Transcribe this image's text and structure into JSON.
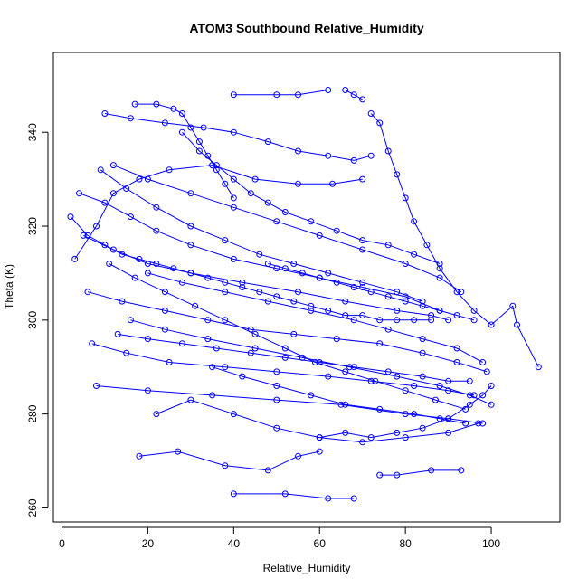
{
  "chart_data": {
    "type": "line",
    "title": "ATOM3 Southbound Relative_Humidity",
    "xlabel": "Relative_Humidity",
    "ylabel": "Theta (K)",
    "xlim": [
      -2,
      116
    ],
    "ylim": [
      257,
      357
    ],
    "xticks": [
      0,
      20,
      40,
      60,
      80,
      100
    ],
    "yticks": [
      260,
      280,
      300,
      320,
      340
    ],
    "grid": false,
    "legend": "none",
    "marker": "open-circle",
    "color": "#0000ff",
    "series": [
      {
        "values": [
          [
            3,
            313
          ],
          [
            8,
            320
          ],
          [
            12,
            327
          ],
          [
            18,
            330
          ],
          [
            25,
            332
          ],
          [
            35,
            333
          ],
          [
            45,
            330
          ],
          [
            55,
            329
          ],
          [
            63,
            329
          ],
          [
            70,
            330
          ]
        ]
      },
      {
        "values": [
          [
            4,
            327
          ],
          [
            10,
            325
          ],
          [
            16,
            322
          ],
          [
            22,
            319
          ],
          [
            30,
            316
          ],
          [
            40,
            313
          ],
          [
            50,
            311
          ],
          [
            60,
            309
          ],
          [
            70,
            307
          ],
          [
            80,
            305
          ],
          [
            88,
            302
          ]
        ]
      },
      {
        "values": [
          [
            5,
            318
          ],
          [
            12,
            315
          ],
          [
            20,
            312
          ],
          [
            30,
            310
          ],
          [
            42,
            308
          ],
          [
            55,
            306
          ],
          [
            66,
            304
          ],
          [
            78,
            302
          ],
          [
            86,
            301
          ],
          [
            90,
            300
          ]
        ]
      },
      {
        "values": [
          [
            7,
            295
          ],
          [
            15,
            293
          ],
          [
            25,
            291
          ],
          [
            38,
            290
          ],
          [
            50,
            289
          ],
          [
            62,
            288
          ],
          [
            72,
            287
          ],
          [
            82,
            286
          ],
          [
            90,
            285
          ],
          [
            96,
            284
          ]
        ]
      },
      {
        "values": [
          [
            8,
            286
          ],
          [
            20,
            285
          ],
          [
            35,
            284
          ],
          [
            50,
            283
          ],
          [
            65,
            282
          ],
          [
            80,
            280
          ],
          [
            90,
            279
          ],
          [
            98,
            278
          ]
        ]
      },
      {
        "values": [
          [
            10,
            344
          ],
          [
            16,
            343
          ],
          [
            24,
            342
          ],
          [
            33,
            341
          ],
          [
            40,
            340
          ],
          [
            48,
            338
          ],
          [
            55,
            336
          ],
          [
            62,
            335
          ],
          [
            68,
            334
          ],
          [
            72,
            335
          ]
        ]
      },
      {
        "values": [
          [
            12,
            333
          ],
          [
            20,
            330
          ],
          [
            30,
            327
          ],
          [
            40,
            324
          ],
          [
            50,
            321
          ],
          [
            60,
            318
          ],
          [
            70,
            315
          ],
          [
            80,
            312
          ],
          [
            88,
            309
          ],
          [
            93,
            306
          ]
        ]
      },
      {
        "values": [
          [
            18,
            271
          ],
          [
            27,
            272
          ],
          [
            38,
            269
          ],
          [
            48,
            268
          ],
          [
            55,
            271
          ],
          [
            60,
            272
          ]
        ]
      },
      {
        "values": [
          [
            40,
            263
          ],
          [
            52,
            263
          ],
          [
            62,
            262
          ],
          [
            68,
            262
          ]
        ]
      },
      {
        "values": [
          [
            40,
            348
          ],
          [
            50,
            348
          ],
          [
            55,
            348
          ],
          [
            62,
            349
          ],
          [
            66,
            349
          ],
          [
            68,
            348
          ],
          [
            70,
            347
          ]
        ]
      },
      {
        "values": [
          [
            72,
            344
          ],
          [
            74,
            342
          ],
          [
            76,
            336
          ],
          [
            78,
            331
          ],
          [
            80,
            326
          ],
          [
            82,
            321
          ],
          [
            85,
            316
          ],
          [
            88,
            311
          ],
          [
            92,
            306
          ],
          [
            96,
            302
          ],
          [
            100,
            299
          ],
          [
            105,
            303
          ],
          [
            106,
            299
          ],
          [
            111,
            290
          ]
        ]
      },
      {
        "values": [
          [
            74,
            267
          ],
          [
            78,
            267
          ],
          [
            86,
            268
          ],
          [
            93,
            268
          ]
        ]
      },
      {
        "values": [
          [
            16,
            300
          ],
          [
            24,
            298
          ],
          [
            34,
            296
          ],
          [
            45,
            294
          ],
          [
            56,
            292
          ],
          [
            67,
            290
          ],
          [
            78,
            288
          ],
          [
            88,
            286
          ],
          [
            95,
            284
          ],
          [
            100,
            282
          ]
        ]
      },
      {
        "values": [
          [
            20,
            310
          ],
          [
            28,
            308
          ],
          [
            38,
            306
          ],
          [
            48,
            304
          ],
          [
            58,
            302
          ],
          [
            68,
            300
          ],
          [
            76,
            298
          ],
          [
            84,
            296
          ],
          [
            92,
            294
          ],
          [
            98,
            291
          ]
        ]
      },
      {
        "values": [
          [
            22,
            280
          ],
          [
            30,
            283
          ],
          [
            40,
            280
          ],
          [
            50,
            277
          ],
          [
            60,
            275
          ],
          [
            70,
            274
          ],
          [
            80,
            275
          ],
          [
            90,
            276
          ],
          [
            97,
            278
          ]
        ]
      },
      {
        "values": [
          [
            6,
            306
          ],
          [
            14,
            304
          ],
          [
            24,
            302
          ],
          [
            34,
            300
          ],
          [
            44,
            298
          ],
          [
            54,
            297
          ],
          [
            64,
            296
          ],
          [
            74,
            295
          ],
          [
            84,
            293
          ],
          [
            92,
            291
          ],
          [
            99,
            289
          ]
        ]
      },
      {
        "values": [
          [
            9,
            332
          ],
          [
            15,
            328
          ],
          [
            22,
            324
          ],
          [
            30,
            320
          ],
          [
            38,
            317
          ],
          [
            46,
            314
          ],
          [
            54,
            312
          ],
          [
            62,
            310
          ],
          [
            70,
            308
          ],
          [
            78,
            306
          ],
          [
            84,
            304
          ]
        ]
      },
      {
        "values": [
          [
            28,
            340
          ],
          [
            32,
            336
          ],
          [
            36,
            333
          ],
          [
            40,
            330
          ],
          [
            44,
            327
          ],
          [
            48,
            325
          ],
          [
            52,
            323
          ],
          [
            58,
            321
          ],
          [
            64,
            319
          ],
          [
            70,
            317
          ],
          [
            76,
            316
          ],
          [
            82,
            314
          ],
          [
            88,
            312
          ]
        ]
      },
      {
        "values": [
          [
            11,
            312
          ],
          [
            17,
            309
          ],
          [
            24,
            306
          ],
          [
            31,
            303
          ],
          [
            38,
            300
          ],
          [
            45,
            297
          ],
          [
            52,
            294
          ],
          [
            59,
            291
          ],
          [
            66,
            289
          ],
          [
            73,
            287
          ],
          [
            80,
            285
          ],
          [
            87,
            283
          ],
          [
            94,
            281
          ]
        ]
      },
      {
        "values": [
          [
            13,
            297
          ],
          [
            20,
            296
          ],
          [
            28,
            295
          ],
          [
            36,
            294
          ],
          [
            44,
            293
          ],
          [
            52,
            292
          ],
          [
            60,
            291
          ],
          [
            68,
            290
          ],
          [
            76,
            289
          ],
          [
            84,
            288
          ],
          [
            90,
            287
          ],
          [
            95,
            287
          ]
        ]
      },
      {
        "values": [
          [
            2,
            322
          ],
          [
            6,
            318
          ],
          [
            10,
            316
          ],
          [
            14,
            314
          ],
          [
            18,
            313
          ],
          [
            22,
            312
          ],
          [
            26,
            311
          ],
          [
            30,
            310
          ],
          [
            34,
            309
          ],
          [
            38,
            308
          ],
          [
            42,
            307
          ],
          [
            46,
            306
          ],
          [
            50,
            305
          ],
          [
            54,
            304
          ],
          [
            58,
            303
          ],
          [
            62,
            302
          ],
          [
            66,
            301
          ],
          [
            70,
            301
          ],
          [
            74,
            300
          ],
          [
            78,
            300
          ],
          [
            82,
            300
          ],
          [
            86,
            300
          ]
        ]
      },
      {
        "values": [
          [
            17,
            346
          ],
          [
            22,
            346
          ],
          [
            26,
            345
          ],
          [
            28,
            344
          ],
          [
            30,
            341
          ],
          [
            32,
            338
          ],
          [
            34,
            335
          ],
          [
            36,
            332
          ],
          [
            38,
            329
          ],
          [
            40,
            326
          ]
        ]
      },
      {
        "values": [
          [
            48,
            312
          ],
          [
            52,
            311
          ],
          [
            56,
            310
          ],
          [
            60,
            309
          ],
          [
            64,
            308
          ],
          [
            68,
            307
          ],
          [
            72,
            306
          ],
          [
            76,
            305
          ],
          [
            80,
            304
          ],
          [
            84,
            303
          ],
          [
            88,
            302
          ],
          [
            92,
            301
          ],
          [
            96,
            300
          ]
        ]
      },
      {
        "values": [
          [
            35,
            290
          ],
          [
            42,
            288
          ],
          [
            50,
            286
          ],
          [
            58,
            284
          ],
          [
            66,
            282
          ],
          [
            74,
            281
          ],
          [
            82,
            280
          ],
          [
            88,
            279
          ],
          [
            94,
            278
          ]
        ]
      },
      {
        "values": [
          [
            60,
            275
          ],
          [
            66,
            276
          ],
          [
            72,
            275
          ],
          [
            78,
            276
          ],
          [
            84,
            277
          ],
          [
            90,
            279
          ],
          [
            95,
            282
          ],
          [
            98,
            284
          ],
          [
            100,
            286
          ]
        ]
      }
    ]
  }
}
